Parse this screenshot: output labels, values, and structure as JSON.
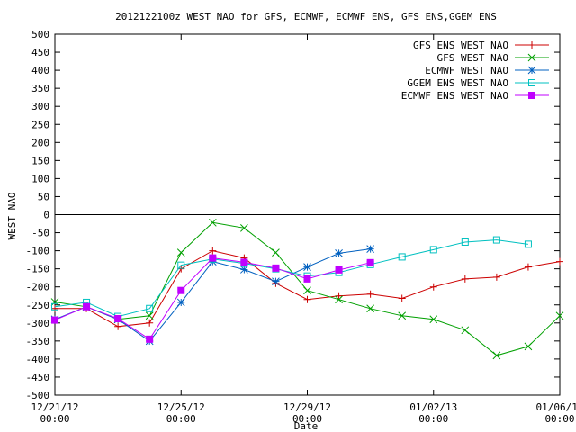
{
  "chart_data": {
    "type": "line",
    "title": "2012122100z WEST NAO for GFS, ECMWF, ECMWF ENS, GFS ENS,GGEM ENS",
    "xlabel": "Date",
    "ylabel": "WEST NAO",
    "xlim": [
      0,
      16
    ],
    "ylim": [
      -500,
      500
    ],
    "y_ticks": [
      -500,
      -450,
      -400,
      -350,
      -300,
      -250,
      -200,
      -150,
      -100,
      -50,
      0,
      50,
      100,
      150,
      200,
      250,
      300,
      350,
      400,
      450,
      500
    ],
    "x_ticks": [
      {
        "x": 0,
        "date": "12/21/12",
        "time": "00:00"
      },
      {
        "x": 4,
        "date": "12/25/12",
        "time": "00:00"
      },
      {
        "x": 8,
        "date": "12/29/12",
        "time": "00:00"
      },
      {
        "x": 12,
        "date": "01/02/13",
        "time": "00:00"
      },
      {
        "x": 16,
        "date": "01/06/13",
        "time": "00:00"
      }
    ],
    "grid": false,
    "legend_position": "top-right",
    "series": [
      {
        "name": "GFS ENS WEST NAO",
        "color": "#cc0000",
        "marker": "plus",
        "x": [
          0,
          1,
          2,
          3,
          4,
          5,
          6,
          7,
          8,
          9,
          10,
          11,
          12,
          13,
          14,
          15,
          16
        ],
        "values": [
          -260,
          -260,
          -310,
          -300,
          -150,
          -100,
          -120,
          -190,
          -235,
          -225,
          -220,
          -232,
          -200,
          -178,
          -173,
          -145,
          -130
        ]
      },
      {
        "name": "GFS WEST NAO",
        "color": "#00a000",
        "marker": "x",
        "x": [
          0,
          1,
          2,
          3,
          4,
          5,
          6,
          7,
          8,
          9,
          10,
          11,
          12,
          13,
          14,
          15,
          16
        ],
        "values": [
          -242,
          -255,
          -290,
          -280,
          -105,
          -22,
          -37,
          -105,
          -210,
          -235,
          -260,
          -280,
          -290,
          -320,
          -390,
          -365,
          -280
        ]
      },
      {
        "name": "ECMWF WEST NAO",
        "color": "#0060c0",
        "marker": "star",
        "x": [
          0,
          1,
          2,
          3,
          4,
          5,
          6,
          7,
          8,
          9,
          10
        ],
        "values": [
          -290,
          -255,
          -290,
          -350,
          -243,
          -130,
          -152,
          -185,
          -145,
          -107,
          -95
        ]
      },
      {
        "name": "GGEM ENS WEST NAO",
        "color": "#00c0c0",
        "marker": "square-open",
        "x": [
          0,
          1,
          2,
          3,
          4,
          5,
          6,
          7,
          8,
          9,
          10,
          11,
          12,
          13,
          14,
          15
        ],
        "values": [
          -255,
          -243,
          -282,
          -260,
          -140,
          -123,
          -135,
          -150,
          -170,
          -160,
          -138,
          -117,
          -97,
          -76,
          -70,
          -82
        ]
      },
      {
        "name": "ECMWF ENS WEST NAO",
        "color": "#c000ff",
        "marker": "square-filled",
        "x": [
          0,
          1,
          2,
          3,
          4,
          5,
          6,
          7,
          8,
          9,
          10
        ],
        "values": [
          -292,
          -255,
          -288,
          -345,
          -210,
          -120,
          -132,
          -148,
          -178,
          -153,
          -133
        ]
      }
    ]
  }
}
